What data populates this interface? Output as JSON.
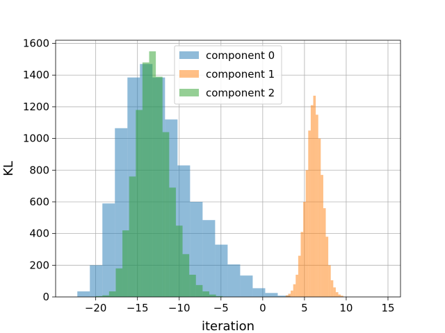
{
  "chart_data": {
    "type": "histogram",
    "title": "",
    "xlabel": "iteration",
    "ylabel": "KL",
    "xlim": [
      -24.8,
      16.5
    ],
    "ylim": [
      0,
      1620
    ],
    "xticks": [
      -20,
      -15,
      -10,
      -5,
      0,
      5,
      10,
      15
    ],
    "yticks": [
      0,
      200,
      400,
      600,
      800,
      1000,
      1200,
      1400,
      1600
    ],
    "grid": true,
    "legend": "upper-center",
    "series": [
      {
        "name": "component 0",
        "color": "#1f77b4",
        "opacity": 0.5,
        "bins": [
          {
            "x0": -22.2,
            "x1": -20.7,
            "value": 35
          },
          {
            "x0": -20.7,
            "x1": -19.2,
            "value": 200
          },
          {
            "x0": -19.2,
            "x1": -17.7,
            "value": 590
          },
          {
            "x0": -17.7,
            "x1": -16.2,
            "value": 1065
          },
          {
            "x0": -16.2,
            "x1": -14.7,
            "value": 1385
          },
          {
            "x0": -14.7,
            "x1": -13.2,
            "value": 1470
          },
          {
            "x0": -13.2,
            "x1": -11.7,
            "value": 1385
          },
          {
            "x0": -11.7,
            "x1": -10.2,
            "value": 1120
          },
          {
            "x0": -10.2,
            "x1": -8.7,
            "value": 830
          },
          {
            "x0": -8.7,
            "x1": -7.2,
            "value": 600
          },
          {
            "x0": -7.2,
            "x1": -5.7,
            "value": 485
          },
          {
            "x0": -5.7,
            "x1": -4.2,
            "value": 330
          },
          {
            "x0": -4.2,
            "x1": -2.7,
            "value": 205
          },
          {
            "x0": -2.7,
            "x1": -1.2,
            "value": 135
          },
          {
            "x0": -1.2,
            "x1": 0.3,
            "value": 55
          },
          {
            "x0": 0.3,
            "x1": 1.8,
            "value": 25
          },
          {
            "x0": 1.8,
            "x1": 3.3,
            "value": 8
          }
        ]
      },
      {
        "name": "component 1",
        "color": "#ff7f0e",
        "opacity": 0.5,
        "bins": [
          {
            "x0": 2.75,
            "x1": 3.05,
            "value": 10
          },
          {
            "x0": 3.05,
            "x1": 3.35,
            "value": 20
          },
          {
            "x0": 3.35,
            "x1": 3.65,
            "value": 40
          },
          {
            "x0": 3.65,
            "x1": 3.95,
            "value": 80
          },
          {
            "x0": 3.95,
            "x1": 4.25,
            "value": 140
          },
          {
            "x0": 4.25,
            "x1": 4.55,
            "value": 260
          },
          {
            "x0": 4.55,
            "x1": 4.85,
            "value": 410
          },
          {
            "x0": 4.85,
            "x1": 5.15,
            "value": 600
          },
          {
            "x0": 5.15,
            "x1": 5.45,
            "value": 800
          },
          {
            "x0": 5.45,
            "x1": 5.75,
            "value": 1050
          },
          {
            "x0": 5.75,
            "x1": 6.05,
            "value": 1210
          },
          {
            "x0": 6.05,
            "x1": 6.35,
            "value": 1270
          },
          {
            "x0": 6.35,
            "x1": 6.65,
            "value": 1150
          },
          {
            "x0": 6.65,
            "x1": 6.95,
            "value": 1000
          },
          {
            "x0": 6.95,
            "x1": 7.25,
            "value": 770
          },
          {
            "x0": 7.25,
            "x1": 7.55,
            "value": 560
          },
          {
            "x0": 7.55,
            "x1": 7.85,
            "value": 380
          },
          {
            "x0": 7.85,
            "x1": 8.15,
            "value": 200
          },
          {
            "x0": 8.15,
            "x1": 8.45,
            "value": 105
          },
          {
            "x0": 8.45,
            "x1": 8.75,
            "value": 60
          },
          {
            "x0": 8.75,
            "x1": 9.05,
            "value": 30
          },
          {
            "x0": 9.05,
            "x1": 9.35,
            "value": 15
          },
          {
            "x0": 9.35,
            "x1": 9.65,
            "value": 8
          }
        ]
      },
      {
        "name": "component 2",
        "color": "#2ca02c",
        "opacity": 0.5,
        "bins": [
          {
            "x0": -20.0,
            "x1": -19.2,
            "value": 5
          },
          {
            "x0": -19.2,
            "x1": -18.4,
            "value": 10
          },
          {
            "x0": -18.4,
            "x1": -17.6,
            "value": 35
          },
          {
            "x0": -17.6,
            "x1": -16.8,
            "value": 180
          },
          {
            "x0": -16.8,
            "x1": -16.0,
            "value": 420
          },
          {
            "x0": -16.0,
            "x1": -15.2,
            "value": 760
          },
          {
            "x0": -15.2,
            "x1": -14.4,
            "value": 1180
          },
          {
            "x0": -14.4,
            "x1": -13.6,
            "value": 1480
          },
          {
            "x0": -13.6,
            "x1": -12.8,
            "value": 1550
          },
          {
            "x0": -12.8,
            "x1": -12.0,
            "value": 1390
          },
          {
            "x0": -12.0,
            "x1": -11.2,
            "value": 1040
          },
          {
            "x0": -11.2,
            "x1": -10.4,
            "value": 690
          },
          {
            "x0": -10.4,
            "x1": -9.6,
            "value": 450
          },
          {
            "x0": -9.6,
            "x1": -8.8,
            "value": 270
          },
          {
            "x0": -8.8,
            "x1": -8.0,
            "value": 140
          },
          {
            "x0": -8.0,
            "x1": -7.2,
            "value": 75
          },
          {
            "x0": -7.2,
            "x1": -6.4,
            "value": 35
          },
          {
            "x0": -6.4,
            "x1": -5.6,
            "value": 15
          },
          {
            "x0": -5.6,
            "x1": -4.8,
            "value": 5
          }
        ]
      }
    ]
  }
}
